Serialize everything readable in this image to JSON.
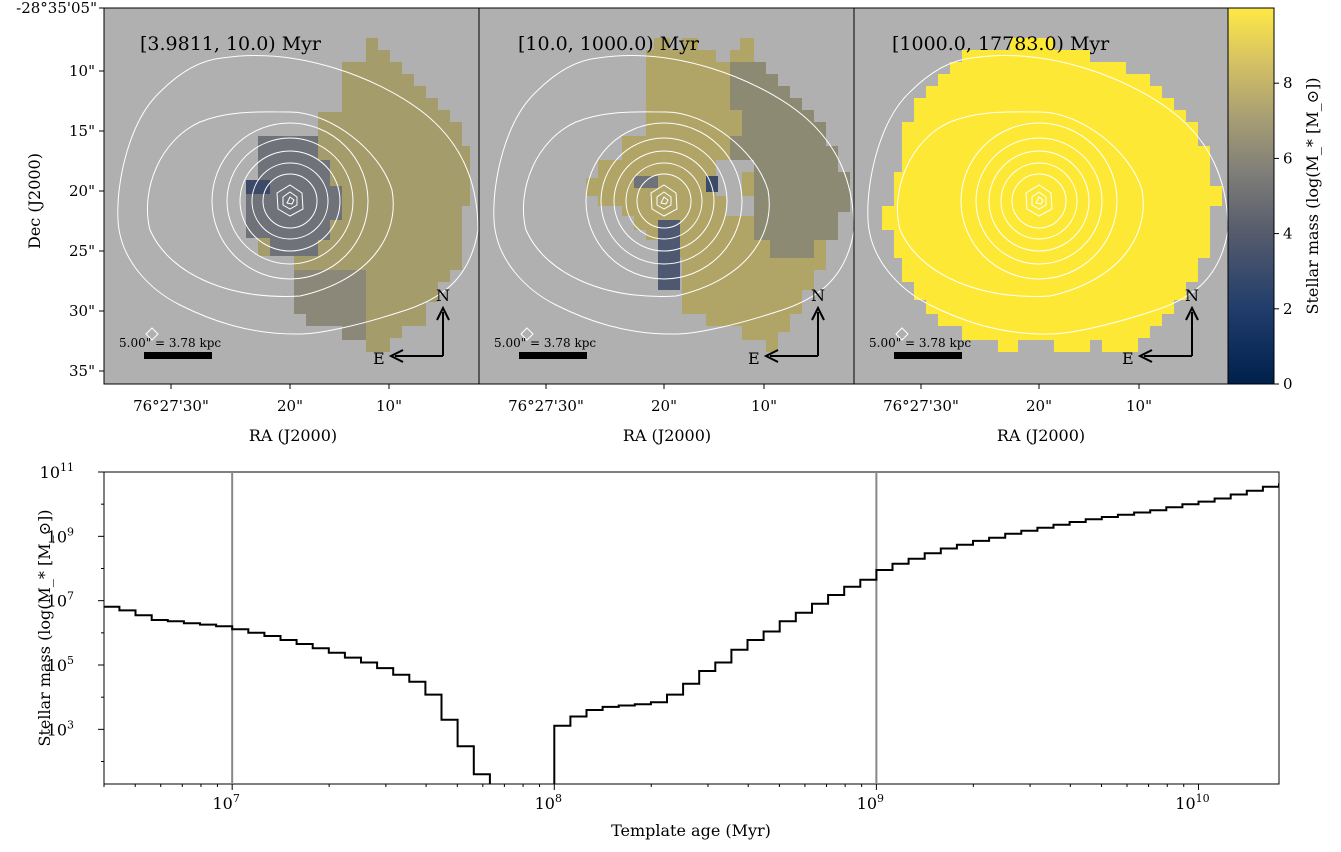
{
  "colors": {
    "background_gray": "#b0b0b0",
    "contour": "#ffffff",
    "late_fill": "#fdea33",
    "late_fill_alt": "#f8e43a",
    "mid_fill_light": "#b0a466",
    "mid_fill_dark": "#8f8c72",
    "young_fill": "#6f7278",
    "dark_fill": "#3c4a68",
    "step_line": "#000000",
    "vline": "#888888"
  },
  "maps": {
    "dec_ticks": [
      "-28°35'05\"",
      "10\"",
      "15\"",
      "20\"",
      "25\"",
      "30\"",
      "35\""
    ],
    "ra_ticks": [
      "76°27'30\"",
      "20\"",
      "10\""
    ],
    "ra_label": "RA (J2000)",
    "dec_label": "Dec (J2000)",
    "scalebar_label": "5.00\" = 3.78 kpc",
    "compass_n": "N",
    "compass_e": "E",
    "panels": [
      {
        "title": "[3.9811, 10.0) Myr"
      },
      {
        "title": "[10.0, 1000.0) Myr"
      },
      {
        "title": "[1000.0, 17783.0) Myr"
      }
    ]
  },
  "colorbar": {
    "label": "Stellar mass (log(M_* [M_⊙])",
    "ticks": [
      "0",
      "2",
      "4",
      "6",
      "8"
    ],
    "range": [
      0,
      10
    ],
    "colormap": "cividis"
  },
  "chart_data": {
    "type": "line",
    "step": true,
    "xscale": "log",
    "yscale": "log",
    "xlabel": "Template age (Myr)",
    "ylabel": "Stellar mass (log(M_* [M_⊙])",
    "xlim": [
      4000000,
      17783000000
    ],
    "ylim": [
      20,
      100000000000
    ],
    "x_ticks": [
      "10^7",
      "10^8",
      "10^9",
      "10^10"
    ],
    "y_ticks": [
      "10^3",
      "10^5",
      "10^7",
      "10^9",
      "10^11"
    ],
    "vlines": [
      10000000,
      1000000000
    ],
    "x": [
      3981100,
      4466800,
      5011900,
      5623400,
      6309600,
      7079500,
      7943300,
      8912500,
      10000000,
      11220000,
      12589000,
      14125000,
      15849000,
      17783000,
      19953000,
      22387000,
      25119000,
      28184000,
      31623000,
      35481000,
      39811000,
      44668000,
      50119000,
      56234000,
      63096000,
      70795000,
      79433000,
      89125000,
      100000000,
      112200000,
      125890000,
      141250000,
      158490000,
      177830000,
      199530000,
      223870000,
      251190000,
      281840000,
      316230000,
      354810000,
      398110000,
      446680000,
      501190000,
      562340000,
      630960000,
      707950000,
      794330000,
      891250000,
      1000000000,
      1122000000,
      1258900000,
      1412500000,
      1584900000,
      1778300000,
      1995300000,
      2238700000,
      2511900000,
      2818400000,
      3162300000,
      3548100000,
      3981100000,
      4466800000,
      5011900000,
      5623400000,
      6309600000,
      7079500000,
      7943300000,
      8912500000,
      10000000000,
      11220000000,
      12589000000,
      14125000000,
      15849000000,
      17783000000
    ],
    "y": [
      6500000,
      5000000,
      3500000,
      2500000,
      2300000,
      2000000,
      1800000,
      1600000,
      1300000,
      1000000,
      800000,
      600000,
      450000,
      330000,
      240000,
      170000,
      120000,
      80000,
      50000,
      30000,
      12000,
      2000,
      300,
      40,
      10,
      10,
      10,
      10,
      1300,
      2500,
      4000,
      5000,
      5500,
      6000,
      7000,
      12000,
      26000,
      65000,
      120000,
      300000,
      600000,
      1100000,
      2300000,
      4200000,
      8000000,
      15000000,
      27000000,
      45000000,
      90000000,
      140000000,
      200000000,
      300000000,
      420000000,
      550000000,
      720000000,
      900000000,
      1200000000,
      1500000000,
      1850000000,
      2300000000,
      2800000000,
      3400000000,
      4000000000,
      4700000000,
      5500000000,
      6500000000,
      8000000000,
      10000000000,
      12000000000,
      15000000000,
      20000000000,
      26000000000,
      35000000000,
      45000000000
    ]
  }
}
